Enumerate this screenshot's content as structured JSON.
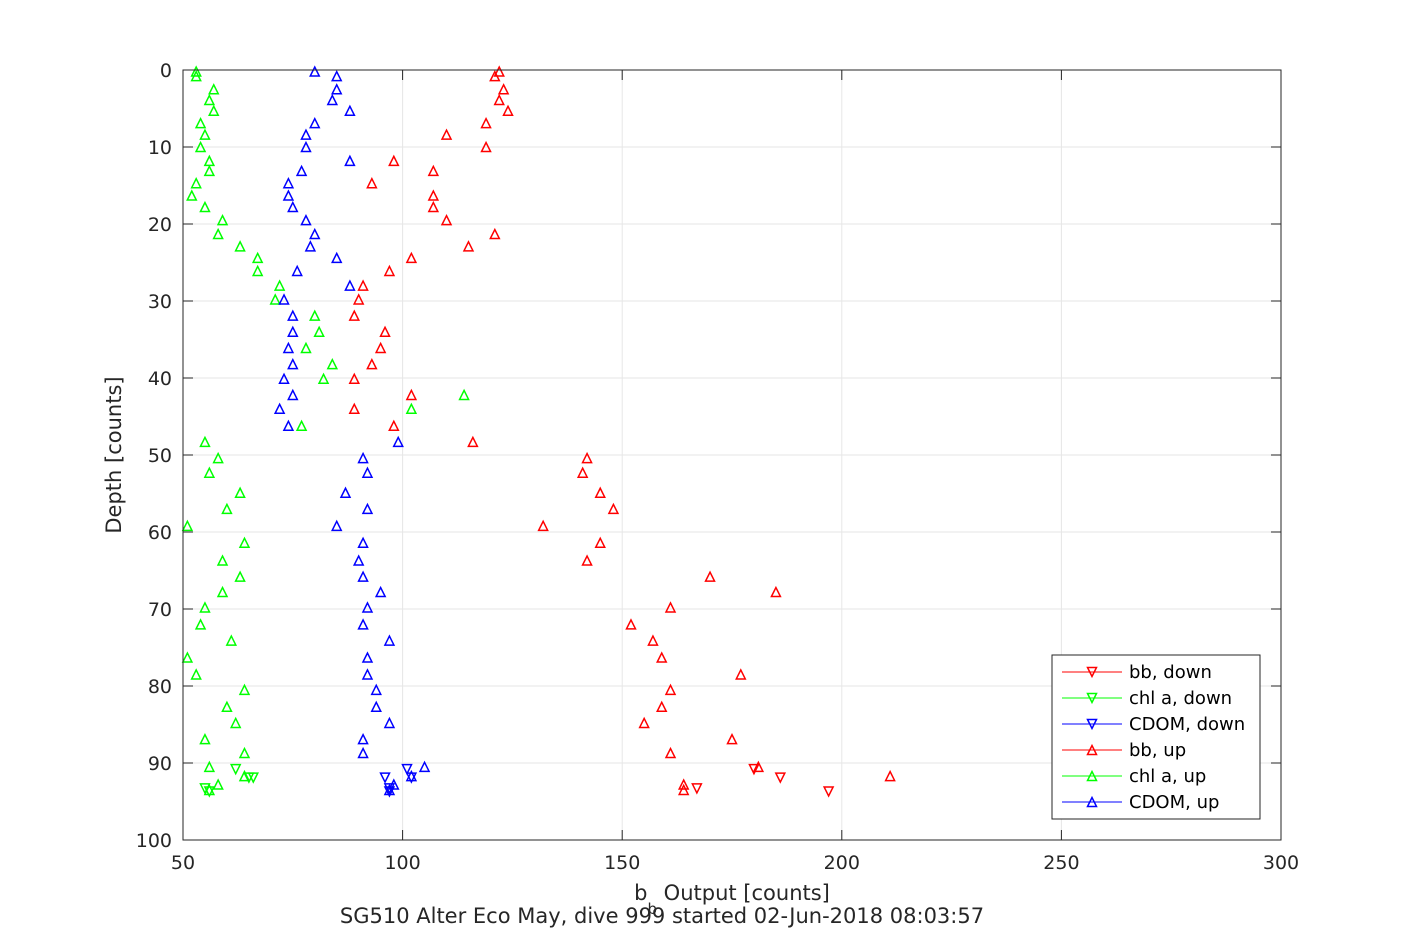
{
  "chart_data": {
    "type": "scatter",
    "title": "",
    "caption": "SG510 Alter Eco May, dive 999 started 02-Jun-2018 08:03:57",
    "xlabel_main": "b",
    "xlabel_sub": "b",
    "xlabel_rest": " Output [counts]",
    "ylabel": "Depth [counts]",
    "xlim": [
      50,
      300
    ],
    "ylim": [
      0,
      100
    ],
    "y_reversed": true,
    "grid": true,
    "legend_position": "bottom-right",
    "xticks": [
      "50",
      "100",
      "150",
      "200",
      "250",
      "300"
    ],
    "yticks": [
      "0",
      "10",
      "20",
      "30",
      "40",
      "50",
      "60",
      "70",
      "80",
      "90",
      "100"
    ],
    "series": [
      {
        "name": "bb, down",
        "color": "#ff0000",
        "marker": "triangle-down",
        "x": [
          167,
          180,
          186,
          197
        ],
        "y": [
          93.3,
          90.8,
          91.9,
          93.7
        ]
      },
      {
        "name": "chl a, down",
        "color": "#00ff00",
        "marker": "triangle-down",
        "x": [
          55,
          56,
          62,
          65,
          66
        ],
        "y": [
          93.3,
          93.7,
          90.8,
          91.9,
          91.9
        ]
      },
      {
        "name": "CDOM, down",
        "color": "#0000ff",
        "marker": "triangle-down",
        "x": [
          96,
          97,
          97,
          101,
          102
        ],
        "y": [
          91.9,
          93.3,
          93.7,
          90.8,
          91.9
        ]
      },
      {
        "name": "bb, up",
        "color": "#ff0000",
        "marker": "triangle-up",
        "x": [
          122,
          121,
          123,
          122,
          124,
          119,
          110,
          119,
          98,
          107,
          93,
          107,
          107,
          110,
          121,
          115,
          102,
          97,
          91,
          90,
          89,
          96,
          95,
          93,
          89,
          102,
          89,
          98,
          116,
          142,
          141,
          145,
          148,
          132,
          145,
          142,
          170,
          185,
          161,
          152,
          157,
          159,
          177,
          161,
          159,
          155,
          175,
          161,
          181,
          211,
          164,
          164
        ],
        "y": [
          0.2,
          0.8,
          2.5,
          3.9,
          5.3,
          6.9,
          8.4,
          10.0,
          11.8,
          13.1,
          14.7,
          16.3,
          17.8,
          19.5,
          21.3,
          22.9,
          24.4,
          26.1,
          28.0,
          29.8,
          31.9,
          34.0,
          36.1,
          38.2,
          40.1,
          42.2,
          44.0,
          46.2,
          48.3,
          50.4,
          52.3,
          54.9,
          57.0,
          59.2,
          61.4,
          63.7,
          65.8,
          67.8,
          69.8,
          72.0,
          74.1,
          76.3,
          78.5,
          80.5,
          82.7,
          84.8,
          86.9,
          88.7,
          90.5,
          91.7,
          92.8,
          93.5
        ]
      },
      {
        "name": "chl a, up",
        "color": "#00ff00",
        "marker": "triangle-up",
        "x": [
          53,
          53,
          57,
          56,
          57,
          54,
          55,
          54,
          56,
          56,
          53,
          52,
          55,
          59,
          58,
          63,
          67,
          67,
          72,
          71,
          80,
          81,
          78,
          84,
          82,
          114,
          102,
          77,
          55,
          58,
          56,
          63,
          60,
          51,
          64,
          59,
          63,
          59,
          55,
          54,
          61,
          51,
          53,
          64,
          60,
          62,
          55,
          64,
          56,
          64,
          58,
          56
        ],
        "y": [
          0.2,
          0.8,
          2.5,
          3.9,
          5.3,
          6.9,
          8.4,
          10.0,
          11.8,
          13.1,
          14.7,
          16.3,
          17.8,
          19.5,
          21.3,
          22.9,
          24.4,
          26.1,
          28.0,
          29.8,
          31.9,
          34.0,
          36.1,
          38.2,
          40.1,
          42.2,
          44.0,
          46.2,
          48.3,
          50.4,
          52.3,
          54.9,
          57.0,
          59.2,
          61.4,
          63.7,
          65.8,
          67.8,
          69.8,
          72.0,
          74.1,
          76.3,
          78.5,
          80.5,
          82.7,
          84.8,
          86.9,
          88.7,
          90.5,
          91.7,
          92.8,
          93.5
        ]
      },
      {
        "name": "CDOM, up",
        "color": "#0000ff",
        "marker": "triangle-up",
        "x": [
          80,
          85,
          85,
          84,
          88,
          80,
          78,
          78,
          88,
          77,
          74,
          74,
          75,
          78,
          80,
          79,
          85,
          76,
          88,
          73,
          75,
          75,
          74,
          75,
          73,
          75,
          72,
          74,
          99,
          91,
          92,
          87,
          92,
          85,
          91,
          90,
          91,
          95,
          92,
          91,
          97,
          92,
          92,
          94,
          94,
          97,
          91,
          91,
          105,
          102,
          98,
          97
        ],
        "y": [
          0.2,
          0.8,
          2.5,
          3.9,
          5.3,
          6.9,
          8.4,
          10.0,
          11.8,
          13.1,
          14.7,
          16.3,
          17.8,
          19.5,
          21.3,
          22.9,
          24.4,
          26.1,
          28.0,
          29.8,
          31.9,
          34.0,
          36.1,
          38.2,
          40.1,
          42.2,
          44.0,
          46.2,
          48.3,
          50.4,
          52.3,
          54.9,
          57.0,
          59.2,
          61.4,
          63.7,
          65.8,
          67.8,
          69.8,
          72.0,
          74.1,
          76.3,
          78.5,
          80.5,
          82.7,
          84.8,
          86.9,
          88.7,
          90.5,
          91.7,
          92.8,
          93.5
        ]
      }
    ]
  }
}
